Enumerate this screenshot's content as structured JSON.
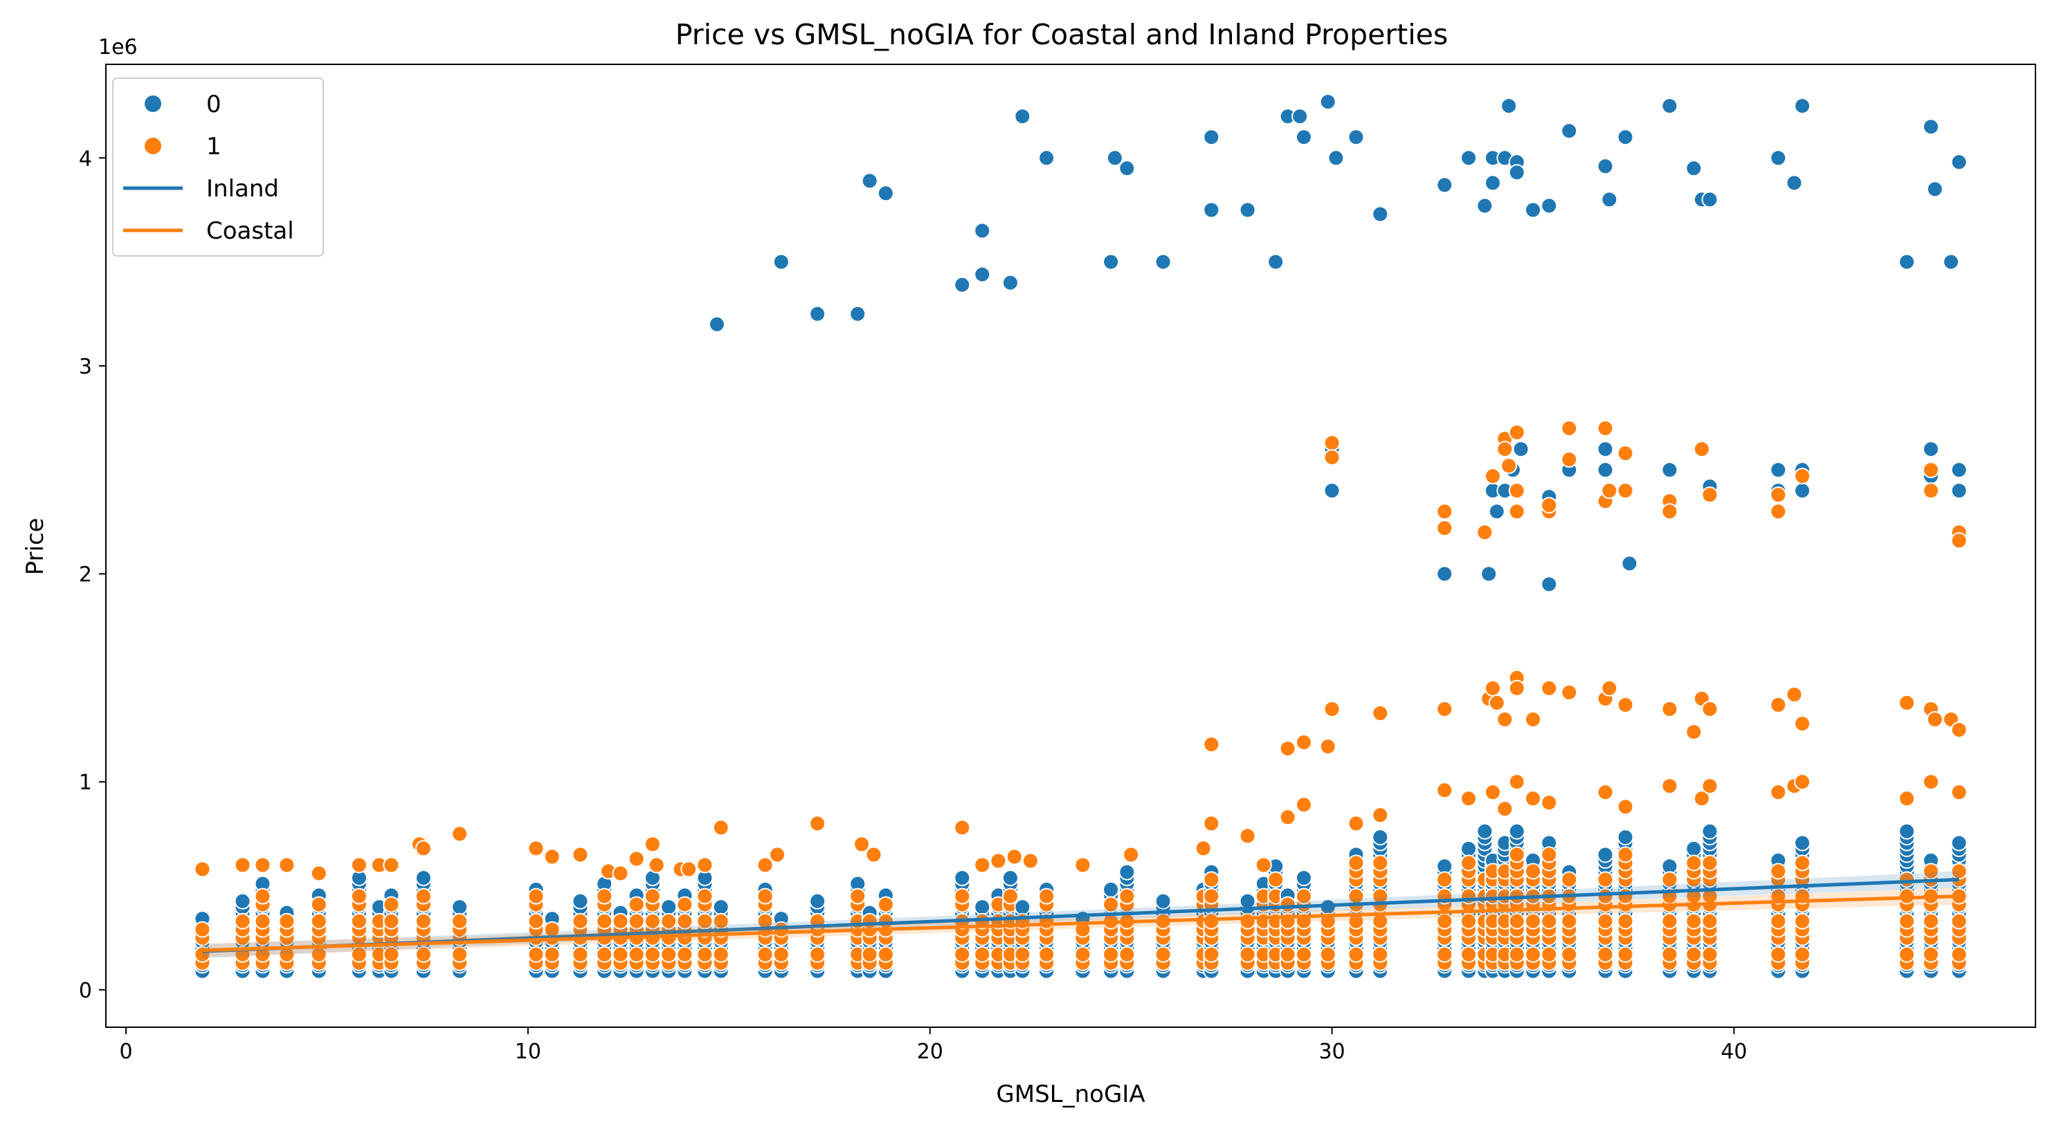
{
  "chart_data": {
    "type": "scatter",
    "title": "Price vs GMSL_noGIA for Coastal and Inland Properties",
    "xlabel": "GMSL_noGIA",
    "ylabel": "Price",
    "y_offset_text": "1e6",
    "xlim": [
      -0.5,
      47.5
    ],
    "ylim": [
      -0.18,
      4.45
    ],
    "x_ticks": [
      0,
      10,
      20,
      30,
      40
    ],
    "y_ticks": [
      0,
      1,
      2,
      3,
      4
    ],
    "grid": false,
    "legend_position": "top-left",
    "legend": [
      {
        "label": "0",
        "kind": "marker",
        "color": "#1f77b4"
      },
      {
        "label": "1",
        "kind": "marker",
        "color": "#ff7f0e"
      },
      {
        "label": "Inland",
        "kind": "line",
        "color": "#1f77b4"
      },
      {
        "label": "Coastal",
        "kind": "line",
        "color": "#ff7f0e"
      }
    ],
    "series": [
      {
        "name": "0",
        "color": "#1f77b4",
        "points": [
          [
            14.7,
            3.2
          ],
          [
            16.3,
            3.5
          ],
          [
            17.2,
            3.25
          ],
          [
            18.2,
            3.25
          ],
          [
            18.5,
            3.89
          ],
          [
            18.9,
            3.83
          ],
          [
            20.8,
            3.39
          ],
          [
            21.3,
            3.65
          ],
          [
            21.3,
            3.44
          ],
          [
            22.0,
            3.4
          ],
          [
            22.3,
            4.2
          ],
          [
            22.9,
            4.0
          ],
          [
            24.5,
            3.5
          ],
          [
            24.6,
            4.0
          ],
          [
            24.9,
            3.95
          ],
          [
            25.8,
            3.5
          ],
          [
            27.0,
            3.75
          ],
          [
            27.0,
            4.1
          ],
          [
            27.9,
            3.75
          ],
          [
            28.6,
            3.5
          ],
          [
            28.9,
            4.2
          ],
          [
            29.2,
            4.2
          ],
          [
            29.3,
            4.1
          ],
          [
            29.9,
            4.27
          ],
          [
            30.1,
            4.0
          ],
          [
            30.6,
            4.1
          ],
          [
            31.2,
            3.73
          ],
          [
            32.8,
            3.87
          ],
          [
            33.4,
            4.0
          ],
          [
            33.8,
            3.77
          ],
          [
            34.0,
            4.0
          ],
          [
            34.3,
            4.0
          ],
          [
            34.0,
            3.88
          ],
          [
            34.4,
            4.25
          ],
          [
            34.6,
            3.98
          ],
          [
            34.6,
            3.93
          ],
          [
            35.0,
            3.75
          ],
          [
            35.4,
            3.77
          ],
          [
            35.9,
            4.13
          ],
          [
            36.8,
            3.96
          ],
          [
            36.9,
            3.8
          ],
          [
            37.3,
            4.1
          ],
          [
            38.4,
            4.25
          ],
          [
            39.0,
            3.95
          ],
          [
            39.2,
            3.8
          ],
          [
            39.4,
            3.8
          ],
          [
            41.1,
            4.0
          ],
          [
            41.5,
            3.88
          ],
          [
            41.7,
            4.25
          ],
          [
            44.3,
            3.5
          ],
          [
            44.9,
            4.15
          ],
          [
            45.0,
            3.85
          ],
          [
            45.4,
            3.5
          ],
          [
            45.6,
            3.98
          ],
          [
            30.0,
            2.6
          ],
          [
            30.0,
            2.4
          ],
          [
            32.8,
            2.0
          ],
          [
            33.9,
            2.0
          ],
          [
            35.4,
            1.95
          ],
          [
            37.4,
            2.05
          ],
          [
            34.1,
            2.3
          ],
          [
            34.0,
            2.4
          ],
          [
            34.3,
            2.4
          ],
          [
            34.5,
            2.5
          ],
          [
            34.7,
            2.6
          ],
          [
            35.4,
            2.37
          ],
          [
            35.9,
            2.5
          ],
          [
            36.8,
            2.6
          ],
          [
            36.8,
            2.5
          ],
          [
            38.4,
            2.5
          ],
          [
            41.1,
            2.4
          ],
          [
            41.1,
            2.5
          ],
          [
            41.7,
            2.4
          ],
          [
            41.7,
            2.5
          ],
          [
            44.9,
            2.6
          ],
          [
            44.9,
            2.47
          ],
          [
            45.6,
            2.4
          ],
          [
            45.6,
            2.5
          ],
          [
            39.4,
            2.42
          ]
        ]
      },
      {
        "name": "1",
        "color": "#ff7f0e",
        "points": [
          [
            30.0,
            2.63
          ],
          [
            30.0,
            2.56
          ],
          [
            32.8,
            2.22
          ],
          [
            32.8,
            2.3
          ],
          [
            33.8,
            2.2
          ],
          [
            34.0,
            2.47
          ],
          [
            34.3,
            2.65
          ],
          [
            34.3,
            2.6
          ],
          [
            34.6,
            2.68
          ],
          [
            34.4,
            2.52
          ],
          [
            34.6,
            2.4
          ],
          [
            34.6,
            2.3
          ],
          [
            35.4,
            2.3
          ],
          [
            35.4,
            2.33
          ],
          [
            35.9,
            2.7
          ],
          [
            35.9,
            2.55
          ],
          [
            36.8,
            2.7
          ],
          [
            36.8,
            2.35
          ],
          [
            36.9,
            2.4
          ],
          [
            37.3,
            2.58
          ],
          [
            37.3,
            2.4
          ],
          [
            38.4,
            2.35
          ],
          [
            38.4,
            2.3
          ],
          [
            39.2,
            2.6
          ],
          [
            39.4,
            2.38
          ],
          [
            41.1,
            2.38
          ],
          [
            41.1,
            2.3
          ],
          [
            41.7,
            2.47
          ],
          [
            44.9,
            2.5
          ],
          [
            44.9,
            2.4
          ],
          [
            45.6,
            2.2
          ],
          [
            45.6,
            2.16
          ],
          [
            27.0,
            1.18
          ],
          [
            28.9,
            1.16
          ],
          [
            29.3,
            1.19
          ],
          [
            29.9,
            1.17
          ],
          [
            30.0,
            1.35
          ],
          [
            31.2,
            1.33
          ],
          [
            32.8,
            1.35
          ],
          [
            33.9,
            1.4
          ],
          [
            34.0,
            1.45
          ],
          [
            34.3,
            1.3
          ],
          [
            34.1,
            1.38
          ],
          [
            34.6,
            1.5
          ],
          [
            34.6,
            1.45
          ],
          [
            35.0,
            1.3
          ],
          [
            35.4,
            1.45
          ],
          [
            35.9,
            1.43
          ],
          [
            36.8,
            1.4
          ],
          [
            36.9,
            1.45
          ],
          [
            37.3,
            1.37
          ],
          [
            38.4,
            1.35
          ],
          [
            39.0,
            1.24
          ],
          [
            39.2,
            1.4
          ],
          [
            39.4,
            1.35
          ],
          [
            41.1,
            1.37
          ],
          [
            41.5,
            1.42
          ],
          [
            41.7,
            1.28
          ],
          [
            44.3,
            1.38
          ],
          [
            44.9,
            1.35
          ],
          [
            45.0,
            1.3
          ],
          [
            45.4,
            1.3
          ],
          [
            45.6,
            1.25
          ],
          [
            1.9,
            0.58
          ],
          [
            2.9,
            0.6
          ],
          [
            3.4,
            0.6
          ],
          [
            4.0,
            0.6
          ],
          [
            4.8,
            0.56
          ],
          [
            5.8,
            0.6
          ],
          [
            6.3,
            0.6
          ],
          [
            6.6,
            0.6
          ],
          [
            7.3,
            0.7
          ],
          [
            7.4,
            0.68
          ],
          [
            8.3,
            0.75
          ],
          [
            10.2,
            0.68
          ],
          [
            10.6,
            0.64
          ],
          [
            11.3,
            0.65
          ],
          [
            12.0,
            0.57
          ],
          [
            12.3,
            0.56
          ],
          [
            12.7,
            0.63
          ],
          [
            13.1,
            0.7
          ],
          [
            13.2,
            0.6
          ],
          [
            13.8,
            0.58
          ],
          [
            14.0,
            0.58
          ],
          [
            14.4,
            0.6
          ],
          [
            14.8,
            0.78
          ],
          [
            15.9,
            0.6
          ],
          [
            16.2,
            0.65
          ],
          [
            17.2,
            0.8
          ],
          [
            18.3,
            0.7
          ],
          [
            18.6,
            0.65
          ],
          [
            20.8,
            0.78
          ],
          [
            21.3,
            0.6
          ],
          [
            21.7,
            0.62
          ],
          [
            22.1,
            0.64
          ],
          [
            22.5,
            0.62
          ],
          [
            23.8,
            0.6
          ],
          [
            25.0,
            0.65
          ],
          [
            26.8,
            0.68
          ],
          [
            27.0,
            0.8
          ],
          [
            27.9,
            0.74
          ],
          [
            28.3,
            0.6
          ],
          [
            28.9,
            0.83
          ],
          [
            29.3,
            0.89
          ],
          [
            30.6,
            0.8
          ],
          [
            31.2,
            0.84
          ],
          [
            32.8,
            0.96
          ],
          [
            33.4,
            0.92
          ],
          [
            34.0,
            0.95
          ],
          [
            34.3,
            0.87
          ],
          [
            34.6,
            1.0
          ],
          [
            35.0,
            0.92
          ],
          [
            35.4,
            0.9
          ],
          [
            36.8,
            0.95
          ],
          [
            37.3,
            0.88
          ],
          [
            38.4,
            0.98
          ],
          [
            39.2,
            0.92
          ],
          [
            39.4,
            0.98
          ],
          [
            41.1,
            0.95
          ],
          [
            41.5,
            0.98
          ],
          [
            41.7,
            1.0
          ],
          [
            44.3,
            0.92
          ],
          [
            44.9,
            1.0
          ],
          [
            45.6,
            0.95
          ]
        ]
      }
    ],
    "strip_x": [
      1.9,
      2.9,
      3.4,
      4.0,
      4.8,
      5.8,
      6.3,
      6.6,
      7.4,
      8.3,
      10.2,
      10.6,
      11.3,
      11.9,
      12.3,
      12.7,
      13.1,
      13.5,
      13.9,
      14.4,
      14.8,
      15.9,
      16.3,
      17.2,
      18.2,
      18.5,
      18.9,
      20.8,
      21.3,
      21.7,
      22.0,
      22.3,
      22.9,
      23.8,
      24.5,
      24.9,
      25.8,
      26.8,
      27.0,
      27.9,
      28.3,
      28.6,
      28.9,
      29.3,
      29.9,
      30.6,
      31.2,
      32.8,
      33.4,
      33.8,
      34.0,
      34.3,
      34.6,
      35.0,
      35.4,
      35.9,
      36.8,
      37.3,
      38.4,
      39.0,
      39.4,
      41.1,
      41.7,
      44.3,
      44.9,
      45.6
    ],
    "regression": [
      {
        "name": "Inland",
        "color": "#1f77b4",
        "x": [
          1.9,
          45.6
        ],
        "y": [
          0.185,
          0.53
        ]
      },
      {
        "name": "Coastal",
        "color": "#ff7f0e",
        "x": [
          1.9,
          45.6
        ],
        "y": [
          0.19,
          0.45
        ]
      }
    ]
  }
}
